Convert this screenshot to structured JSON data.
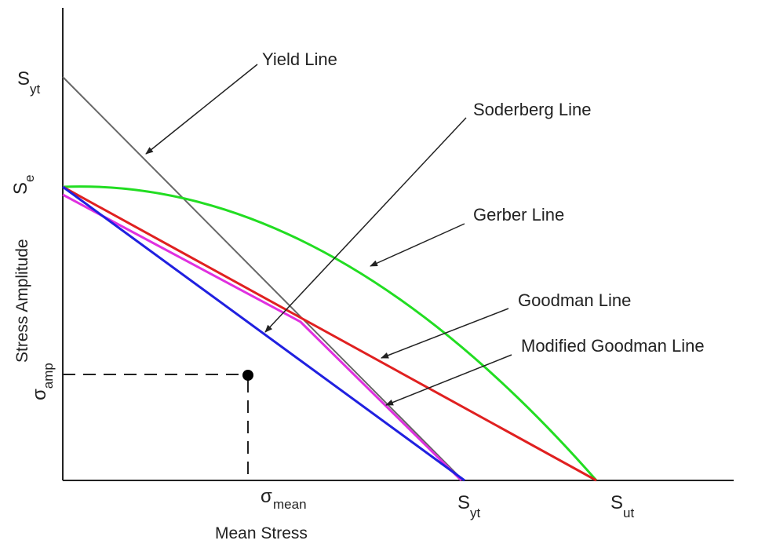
{
  "axes": {
    "x_label": "Mean Stress",
    "y_label": "Stress Amplitude"
  },
  "ticks": {
    "x": [
      {
        "symbol": "σ",
        "sub": "mean"
      },
      {
        "symbol": "S",
        "sub": "yt"
      },
      {
        "symbol": "S",
        "sub": "ut"
      }
    ],
    "y": [
      {
        "symbol": "S",
        "sub": "yt"
      },
      {
        "symbol": "S",
        "sub": "e"
      },
      {
        "symbol": "σ",
        "sub": "amp"
      }
    ]
  },
  "lines": {
    "yield": "Yield Line",
    "soderberg": "Soderberg Line",
    "gerber": "Gerber Line",
    "goodman": "Goodman Line",
    "modified_goodman": "Modified Goodman Line"
  },
  "colors": {
    "yield": "#666666",
    "soderberg": "#2020e0",
    "gerber": "#22dd22",
    "goodman": "#e02020",
    "modified_goodman": "#e030e0"
  }
}
